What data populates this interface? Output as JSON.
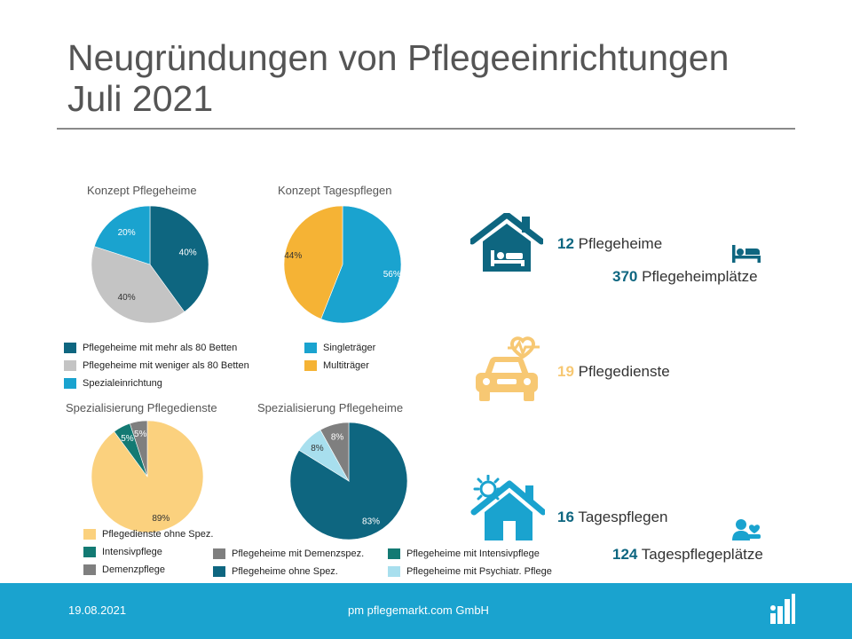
{
  "title_line1": "Neugründungen von Pflegeeinrichtungen",
  "title_line2": "Juli 2021",
  "chart_data": [
    {
      "type": "pie",
      "title": "Konzept Pflegeheime",
      "slices": [
        {
          "label": "Pflegeheime mit mehr als 80 Betten",
          "value": 40,
          "display": "40%",
          "color": "#0e6680"
        },
        {
          "label": "Pflegeheime mit weniger als 80 Betten",
          "value": 40,
          "display": "40%",
          "color": "#c4c4c4"
        },
        {
          "label": "Spezialeinrichtung",
          "value": 20,
          "display": "20%",
          "color": "#1aa3cf"
        }
      ]
    },
    {
      "type": "pie",
      "title": "Konzept Tagespflegen",
      "slices": [
        {
          "label": "Singleträger",
          "value": 56,
          "display": "56%",
          "color": "#1aa3cf"
        },
        {
          "label": "Multiträger",
          "value": 44,
          "display": "44%",
          "color": "#f5b335"
        }
      ]
    },
    {
      "type": "pie",
      "title": "Spezialisierung Pflegedienste",
      "slices": [
        {
          "label": "Pflegedienste ohne Spez.",
          "value": 89,
          "display": "89%",
          "color": "#fbd17e"
        },
        {
          "label": "Intensivpflege",
          "value": 5,
          "display": "5%",
          "color": "#137a73"
        },
        {
          "label": "Demenzpflege",
          "value": 5,
          "display": "5%",
          "color": "#7f7f7f"
        }
      ]
    },
    {
      "type": "pie",
      "title": "Spezialisierung Pflegeheime",
      "slices": [
        {
          "label": "Pflegeheime ohne Spez.",
          "value": 83,
          "display": "83%",
          "color": "#0e6680"
        },
        {
          "label": "Pflegeheime mit Psychiatr. Pflege",
          "value": 8,
          "display": "8%",
          "color": "#a8dfee"
        },
        {
          "label": "Pflegeheime mit Demenzspez.",
          "value": 8,
          "display": "8%",
          "color": "#7f7f7f"
        },
        {
          "label": "Pflegeheime mit Intensivpflege",
          "value": 0,
          "display": "",
          "color": "#137a73"
        }
      ]
    }
  ],
  "stats": {
    "pflegeheime": {
      "number": "12",
      "label": "Pflegeheime"
    },
    "pflegeheimplaetze": {
      "number": "370",
      "label": "Pflegeheimplätze"
    },
    "pflegedienste": {
      "number": "19",
      "label": "Pflegedienste"
    },
    "tagespflegen": {
      "number": "16",
      "label": "Tagespflegen"
    },
    "tagespflegeplaetze": {
      "number": "124",
      "label": "Tagespflegeplätze"
    }
  },
  "icons": {
    "house_bed": "house-with-bed-icon",
    "bed": "bed-icon",
    "car_heart": "car-with-heartbeat-icon",
    "house_sun": "house-with-sun-icon",
    "person_care": "person-care-icon"
  },
  "colors": {
    "dark_teal": "#0e6680",
    "light_blue": "#1aa3cf",
    "gold": "#f7c873",
    "footer": "#1aa3cf"
  },
  "footer": {
    "date": "19.08.2021",
    "company": "pm pflegemarkt.com GmbH"
  }
}
